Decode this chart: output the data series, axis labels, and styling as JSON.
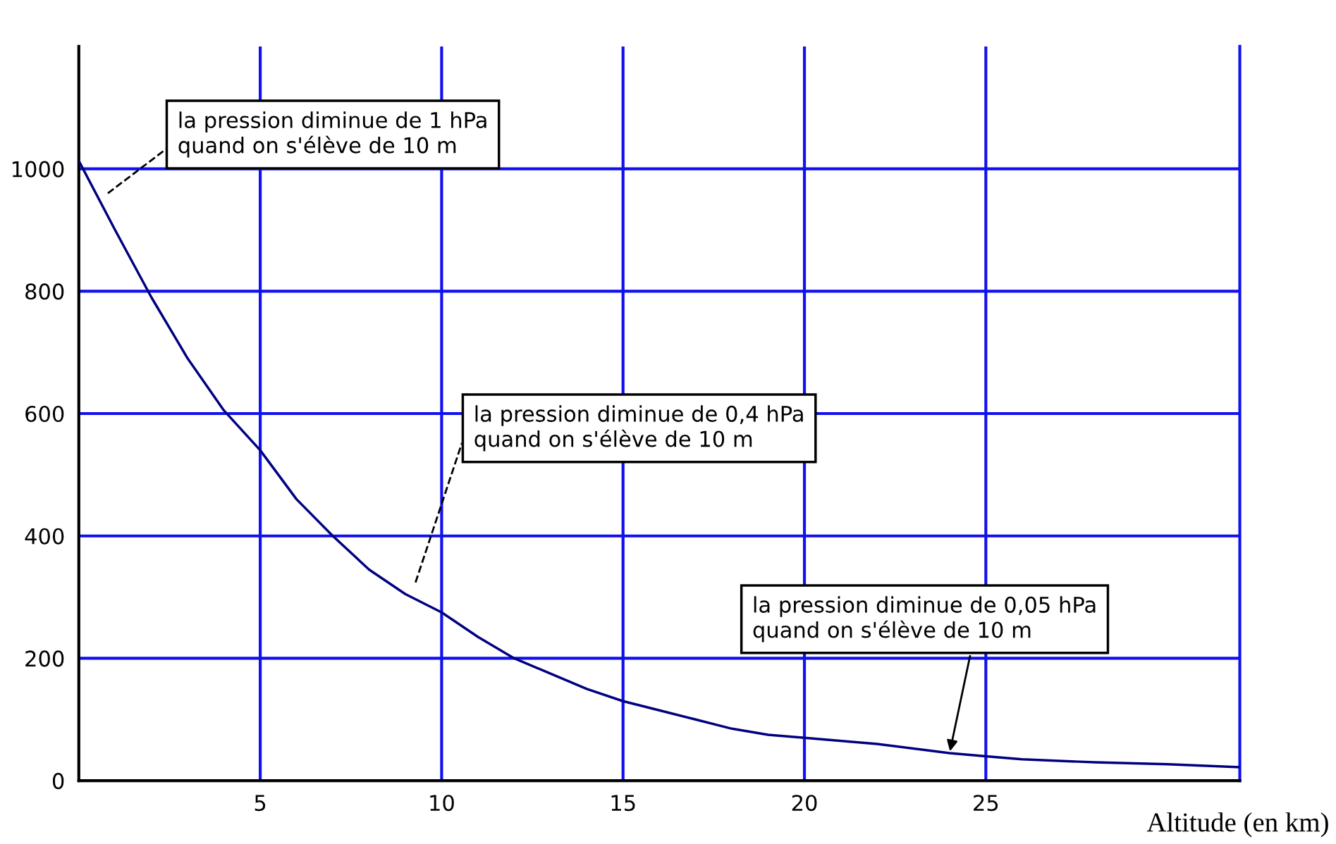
{
  "chart_data": {
    "type": "line",
    "xlabel": "Altitude (en km)",
    "x": [
      0,
      1,
      2,
      3,
      4,
      5,
      6,
      7,
      8,
      9,
      10,
      11,
      12,
      13,
      14,
      15,
      16,
      17,
      18,
      19,
      20,
      22,
      24,
      25,
      26,
      28,
      30,
      32
    ],
    "series": [
      {
        "color": "#000080",
        "values": [
          1013,
          900,
          790,
          690,
          605,
          540,
          460,
          400,
          345,
          305,
          275,
          235,
          200,
          175,
          150,
          130,
          115,
          100,
          85,
          75,
          70,
          60,
          45,
          40,
          35,
          30,
          27,
          22
        ]
      }
    ],
    "xlim": [
      0,
      32
    ],
    "ylim": [
      0,
      1200
    ],
    "xticks": [
      5,
      10,
      15,
      20,
      25
    ],
    "yticks": [
      0,
      200,
      400,
      600,
      800,
      1000
    ],
    "grid": true,
    "marker": "none",
    "line_style": "solid",
    "annotations": [
      "la pression diminue de 1 hPa\nquand on s'élève de 10 m",
      "la pression diminue de 0,4 hPa\nquand on s'élève de 10 m",
      {
        "text": "la pression diminue de 0,05 hPa\nquand on s'élève de 10 m",
        "x": 24,
        "y": 45
      }
    ]
  }
}
